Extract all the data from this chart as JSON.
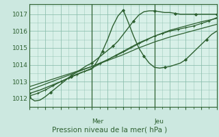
{
  "title": "Pression niveau de la mer( hPa )",
  "bg_color": "#cce8e0",
  "plot_bg_color": "#d8f0e8",
  "grid_color": "#88bbaa",
  "line_color": "#2d6030",
  "axis_color": "#2d6030",
  "xlim": [
    0,
    72
  ],
  "ylim": [
    1011.5,
    1017.6
  ],
  "yticks": [
    1012,
    1013,
    1014,
    1015,
    1016,
    1017
  ],
  "vlines": [
    24,
    48
  ],
  "vline_labels": [
    "Mer",
    "Jeu"
  ],
  "series": [
    {
      "x": [
        0,
        2,
        4,
        6,
        8,
        10,
        12,
        14,
        16,
        18,
        20,
        22,
        24,
        26,
        28,
        30,
        32,
        34,
        36,
        38,
        40,
        42,
        44,
        46,
        48,
        50,
        52,
        54,
        56,
        58,
        60,
        62,
        64,
        66,
        68,
        70,
        72
      ],
      "y": [
        1012.05,
        1011.85,
        1011.9,
        1012.1,
        1012.35,
        1012.6,
        1012.85,
        1013.1,
        1013.35,
        1013.55,
        1013.75,
        1013.95,
        1014.1,
        1014.35,
        1014.6,
        1014.85,
        1015.1,
        1015.4,
        1015.8,
        1016.2,
        1016.6,
        1016.95,
        1017.15,
        1017.2,
        1017.2,
        1017.15,
        1017.1,
        1017.1,
        1017.05,
        1017.0,
        1017.0,
        1017.0,
        1017.0,
        1017.0,
        1017.0,
        1017.0,
        1017.0
      ],
      "marker": "D",
      "markersize": 2.0,
      "markevery": 4,
      "linewidth": 1.0
    },
    {
      "x": [
        0,
        4,
        8,
        12,
        16,
        20,
        24,
        26,
        28,
        30,
        32,
        34,
        36,
        38,
        40,
        42,
        44,
        46,
        48,
        50,
        52,
        54,
        56,
        58,
        60,
        62,
        64,
        66,
        68,
        70,
        72
      ],
      "y": [
        1012.3,
        1012.5,
        1012.75,
        1013.0,
        1013.3,
        1013.55,
        1013.75,
        1014.2,
        1014.8,
        1015.5,
        1016.3,
        1016.9,
        1017.25,
        1016.5,
        1015.7,
        1015.0,
        1014.5,
        1014.1,
        1013.85,
        1013.8,
        1013.85,
        1013.9,
        1014.0,
        1014.1,
        1014.3,
        1014.6,
        1014.9,
        1015.2,
        1015.5,
        1015.8,
        1016.0
      ],
      "marker": "D",
      "markersize": 2.0,
      "markevery": 4,
      "linewidth": 1.0
    },
    {
      "x": [
        0,
        3,
        6,
        9,
        12,
        15,
        18,
        21,
        24,
        27,
        30,
        33,
        36,
        39,
        42,
        45,
        48,
        51,
        54,
        57,
        60,
        63,
        66,
        69,
        72
      ],
      "y": [
        1012.15,
        1012.3,
        1012.5,
        1012.75,
        1013.0,
        1013.2,
        1013.4,
        1013.6,
        1013.8,
        1014.05,
        1014.3,
        1014.55,
        1014.8,
        1015.05,
        1015.3,
        1015.5,
        1015.7,
        1015.85,
        1016.0,
        1016.1,
        1016.2,
        1016.3,
        1016.45,
        1016.6,
        1016.8
      ],
      "marker": "+",
      "markersize": 3.5,
      "markevery": 1,
      "linewidth": 0.9
    },
    {
      "x": [
        0,
        6,
        12,
        18,
        24,
        30,
        36,
        42,
        48,
        54,
        60,
        66,
        72
      ],
      "y": [
        1012.5,
        1012.85,
        1013.2,
        1013.55,
        1013.9,
        1014.3,
        1014.75,
        1015.25,
        1015.7,
        1016.05,
        1016.3,
        1016.55,
        1016.75
      ],
      "marker": null,
      "markersize": 0,
      "markevery": 1,
      "linewidth": 0.9
    },
    {
      "x": [
        0,
        6,
        12,
        18,
        24,
        30,
        36,
        42,
        48,
        54,
        60,
        66,
        72
      ],
      "y": [
        1012.7,
        1013.0,
        1013.3,
        1013.6,
        1013.9,
        1014.25,
        1014.6,
        1015.0,
        1015.35,
        1015.65,
        1015.9,
        1016.15,
        1016.4
      ],
      "marker": null,
      "markersize": 0,
      "markevery": 1,
      "linewidth": 0.9
    }
  ]
}
